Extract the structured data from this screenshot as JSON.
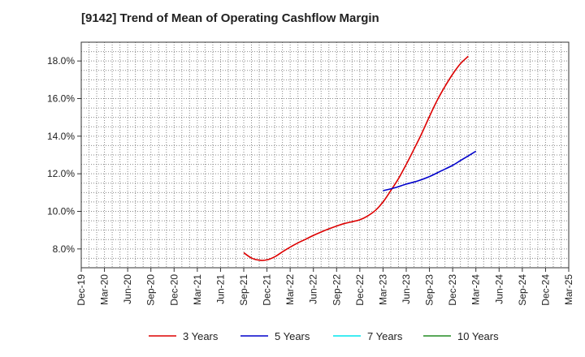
{
  "chart_data": {
    "type": "line",
    "title": "[9142]  Trend of Mean of Operating Cashflow Margin",
    "xlabel": "",
    "ylabel": "",
    "categories": [
      "Dec-19",
      "Mar-20",
      "Jun-20",
      "Sep-20",
      "Dec-20",
      "Mar-21",
      "Jun-21",
      "Sep-21",
      "Dec-21",
      "Mar-22",
      "Jun-22",
      "Sep-22",
      "Dec-22",
      "Mar-23",
      "Jun-23",
      "Sep-23",
      "Dec-23",
      "Mar-24",
      "Jun-24",
      "Sep-24",
      "Dec-24",
      "Mar-25"
    ],
    "ylim": [
      7.0,
      19.0
    ],
    "yticks": [
      8.0,
      10.0,
      12.0,
      14.0,
      16.0,
      18.0
    ],
    "ytick_labels": [
      "8.0%",
      "10.0%",
      "12.0%",
      "14.0%",
      "16.0%",
      "18.0%"
    ],
    "grid": true,
    "legend_position": "bottom",
    "series": [
      {
        "name": "3 Years",
        "color": "#dd0000",
        "points": [
          {
            "x": 7.0,
            "y": 7.8
          },
          {
            "x": 7.33,
            "y": 7.52
          },
          {
            "x": 7.67,
            "y": 7.4
          },
          {
            "x": 8.0,
            "y": 7.42
          },
          {
            "x": 8.33,
            "y": 7.58
          },
          {
            "x": 8.67,
            "y": 7.85
          },
          {
            "x": 9.0,
            "y": 8.1
          },
          {
            "x": 9.33,
            "y": 8.32
          },
          {
            "x": 9.67,
            "y": 8.52
          },
          {
            "x": 10.0,
            "y": 8.72
          },
          {
            "x": 10.33,
            "y": 8.9
          },
          {
            "x": 10.67,
            "y": 9.07
          },
          {
            "x": 11.0,
            "y": 9.22
          },
          {
            "x": 11.33,
            "y": 9.35
          },
          {
            "x": 11.67,
            "y": 9.45
          },
          {
            "x": 12.0,
            "y": 9.55
          },
          {
            "x": 12.33,
            "y": 9.75
          },
          {
            "x": 12.67,
            "y": 10.05
          },
          {
            "x": 13.0,
            "y": 10.5
          },
          {
            "x": 13.33,
            "y": 11.1
          },
          {
            "x": 13.67,
            "y": 11.75
          },
          {
            "x": 14.0,
            "y": 12.5
          },
          {
            "x": 14.33,
            "y": 13.3
          },
          {
            "x": 14.67,
            "y": 14.15
          },
          {
            "x": 15.0,
            "y": 15.05
          },
          {
            "x": 15.33,
            "y": 15.9
          },
          {
            "x": 15.67,
            "y": 16.65
          },
          {
            "x": 16.0,
            "y": 17.3
          },
          {
            "x": 16.33,
            "y": 17.85
          },
          {
            "x": 16.67,
            "y": 18.25
          }
        ]
      },
      {
        "name": "5 Years",
        "color": "#0000cc",
        "points": [
          {
            "x": 13.0,
            "y": 11.1
          },
          {
            "x": 13.5,
            "y": 11.25
          },
          {
            "x": 14.0,
            "y": 11.45
          },
          {
            "x": 14.5,
            "y": 11.62
          },
          {
            "x": 15.0,
            "y": 11.85
          },
          {
            "x": 15.5,
            "y": 12.15
          },
          {
            "x": 16.0,
            "y": 12.45
          },
          {
            "x": 16.33,
            "y": 12.7
          },
          {
            "x": 16.67,
            "y": 12.95
          },
          {
            "x": 17.0,
            "y": 13.2
          }
        ]
      },
      {
        "name": "7 Years",
        "color": "#00e5ee",
        "points": []
      },
      {
        "name": "10 Years",
        "color": "#228b22",
        "points": []
      }
    ]
  }
}
